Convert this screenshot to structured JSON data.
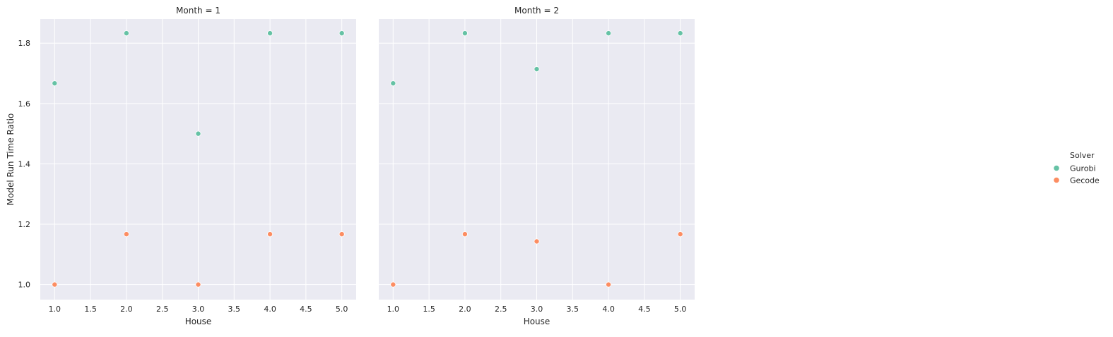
{
  "chart_data": [
    {
      "type": "scatter",
      "title": "Month = 1",
      "xlabel": "House",
      "ylabel": "Model Run Time Ratio",
      "xlim": [
        0.8,
        5.2
      ],
      "ylim": [
        0.95,
        1.88
      ],
      "xticks": [
        "1.0",
        "1.5",
        "2.0",
        "2.5",
        "3.0",
        "3.5",
        "4.0",
        "4.5",
        "5.0"
      ],
      "yticks": [
        "1.0",
        "1.2",
        "1.4",
        "1.6",
        "1.8"
      ],
      "grid": true,
      "series": [
        {
          "name": "Gurobi",
          "x": [
            1,
            2,
            3,
            4,
            5
          ],
          "y": [
            1.667,
            1.833,
            1.5,
            1.833,
            1.833
          ]
        },
        {
          "name": "Gecode",
          "x": [
            1,
            2,
            3,
            4,
            5
          ],
          "y": [
            1.0,
            1.167,
            1.0,
            1.167,
            1.167
          ]
        }
      ]
    },
    {
      "type": "scatter",
      "title": "Month = 2",
      "xlabel": "House",
      "ylabel": "",
      "xlim": [
        0.8,
        5.2
      ],
      "ylim": [
        0.95,
        1.88
      ],
      "xticks": [
        "1.0",
        "1.5",
        "2.0",
        "2.5",
        "3.0",
        "3.5",
        "4.0",
        "4.5",
        "5.0"
      ],
      "yticks": [],
      "grid": true,
      "series": [
        {
          "name": "Gurobi",
          "x": [
            1,
            2,
            3,
            4,
            5
          ],
          "y": [
            1.667,
            1.833,
            1.714,
            1.833,
            1.833
          ]
        },
        {
          "name": "Gecode",
          "x": [
            1,
            2,
            3,
            4,
            5
          ],
          "y": [
            1.0,
            1.167,
            1.143,
            1.0,
            1.167
          ]
        }
      ]
    }
  ],
  "legend": {
    "title": "Solver",
    "placement": "right",
    "items": [
      {
        "label": "Gurobi",
        "color": "#66c2a5"
      },
      {
        "label": "Gecode",
        "color": "#fc8d62"
      }
    ]
  },
  "colors": {
    "panel_bg": "#eaeaf2",
    "grid": "#ffffff",
    "Gurobi": "#66c2a5",
    "Gecode": "#fc8d62"
  }
}
